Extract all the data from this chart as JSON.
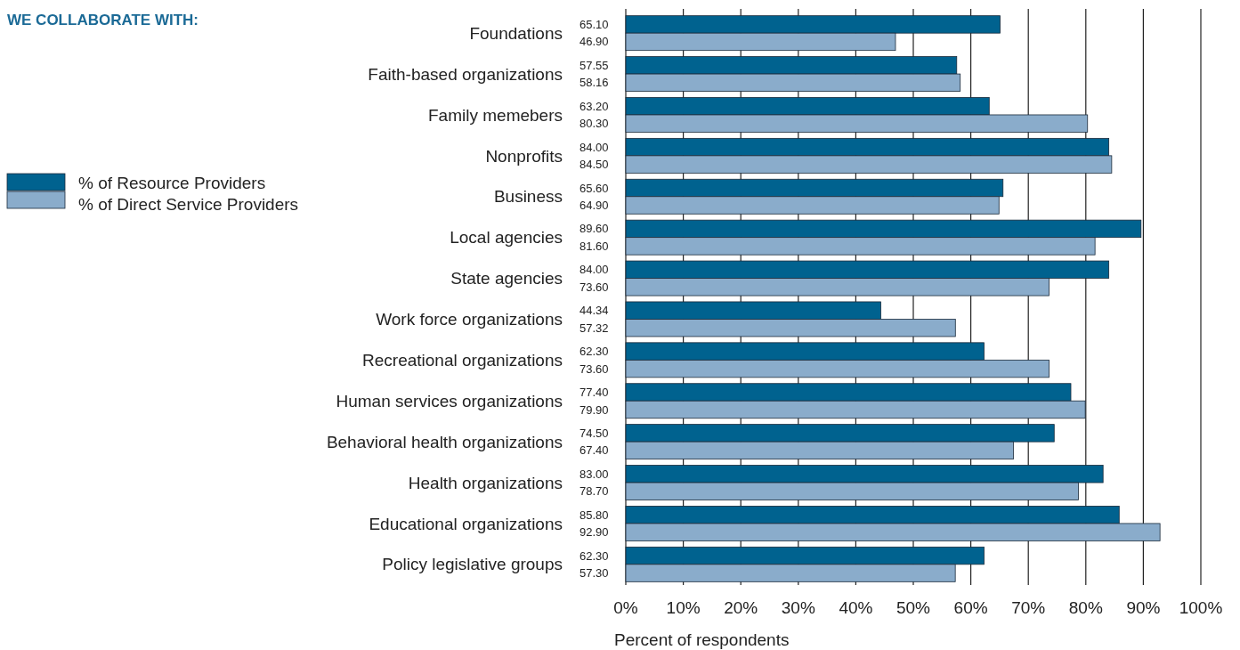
{
  "chart_data": {
    "type": "bar",
    "orientation": "horizontal",
    "title": "WE COLLABORATE WITH:",
    "xlabel": "Percent of respondents",
    "categories": [
      "Foundations",
      "Faith-based organizations",
      "Family memebers",
      "Nonprofits",
      "Business",
      "Local agencies",
      "State agencies",
      "Work force organizations",
      "Recreational organizations",
      "Human services organizations",
      "Behavioral health organizations",
      "Health organizations",
      "Educational organizations",
      "Policy legislative groups"
    ],
    "series": [
      {
        "name": "% of Resource Providers",
        "color": "#00628f",
        "values": [
          65.1,
          57.55,
          63.2,
          84.0,
          65.6,
          89.6,
          84.0,
          44.34,
          62.3,
          77.4,
          74.5,
          83.0,
          85.8,
          62.3
        ],
        "value_labels": [
          "65.10",
          "57.55",
          "63.20",
          "84.00",
          "65.60",
          "89.60",
          "84.00",
          "44.34",
          "62.30",
          "77.40",
          "74.50",
          "83.00",
          "85.80",
          "62.30"
        ]
      },
      {
        "name": "% of Direct Service Providers",
        "color": "#8aaccb",
        "values": [
          46.9,
          58.16,
          80.3,
          84.5,
          64.9,
          81.6,
          73.6,
          57.32,
          73.6,
          79.9,
          67.4,
          78.7,
          92.9,
          57.3
        ],
        "value_labels": [
          "46.90",
          "58.16",
          "80.30",
          "84.50",
          "64.90",
          "81.60",
          "73.60",
          "57.32",
          "73.60",
          "79.90",
          "67.40",
          "78.70",
          "92.90",
          "57.30"
        ]
      }
    ],
    "xlim": [
      0,
      100
    ],
    "xticks": [
      {
        "value": 0,
        "label": "0%"
      },
      {
        "value": 10,
        "label": "10%"
      },
      {
        "value": 20,
        "label": "20%"
      },
      {
        "value": 30,
        "label": "30%"
      },
      {
        "value": 40,
        "label": "40%"
      },
      {
        "value": 50,
        "label": "50%"
      },
      {
        "value": 60,
        "label": "60%"
      },
      {
        "value": 70,
        "label": "70%"
      },
      {
        "value": 80,
        "label": "80%"
      },
      {
        "value": 90,
        "label": "90%"
      },
      {
        "value": 100,
        "label": "100%"
      }
    ],
    "grid": "x",
    "legend": "left"
  }
}
